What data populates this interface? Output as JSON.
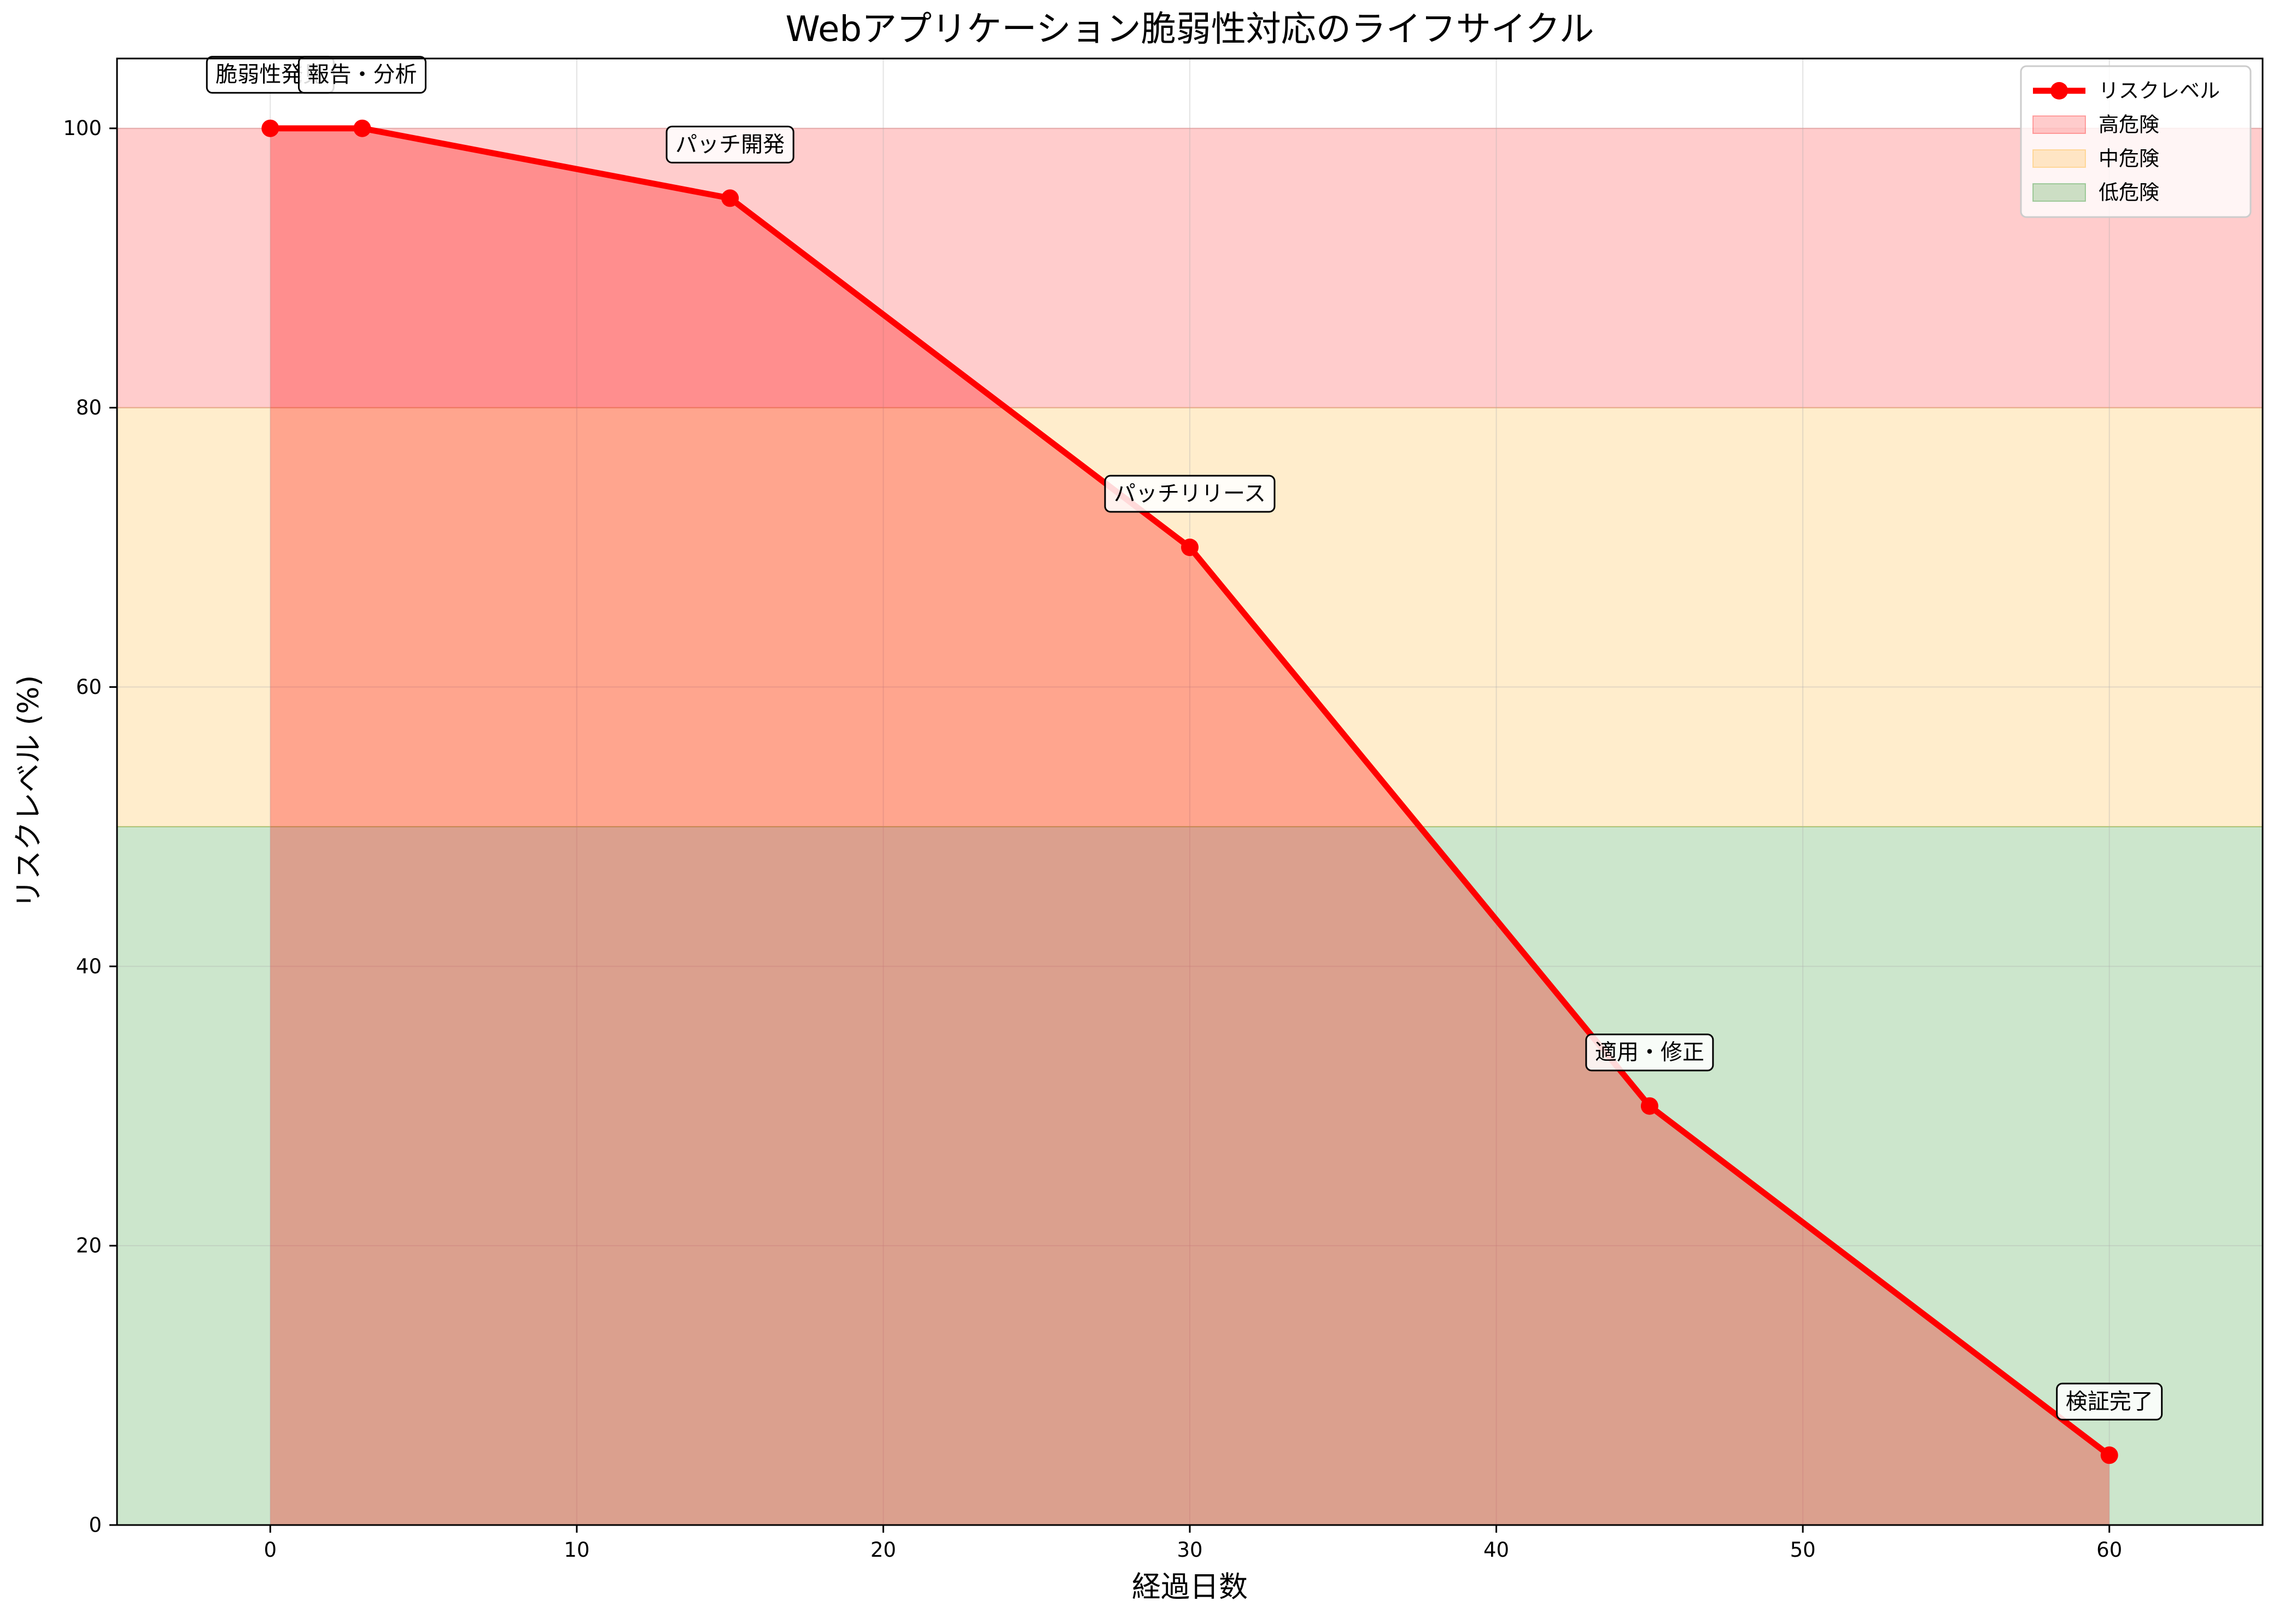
{
  "chart_data": {
    "type": "line",
    "title": "Webアプリケーション脆弱性対応のライフサイクル",
    "xlabel": "経過日数",
    "ylabel": "リスクレベル (%)",
    "xlim": [
      -5,
      65
    ],
    "ylim": [
      0,
      105
    ],
    "xticks": [
      0,
      10,
      20,
      30,
      40,
      50,
      60
    ],
    "yticks": [
      0,
      20,
      40,
      60,
      80,
      100
    ],
    "grid": true,
    "legend_position": "upper right",
    "series": [
      {
        "name": "リスクレベル",
        "color": "#ff0000",
        "fill_under": true,
        "x": [
          0,
          3,
          15,
          30,
          45,
          60
        ],
        "y": [
          100,
          100,
          95,
          70,
          30,
          5
        ]
      }
    ],
    "bands": [
      {
        "name": "高危険",
        "y0": 80,
        "y1": 100,
        "color": "#ff0000",
        "opacity": 0.2
      },
      {
        "name": "中危険",
        "y0": 50,
        "y1": 80,
        "color": "#ffa500",
        "opacity": 0.2
      },
      {
        "name": "低危険",
        "y0": 0,
        "y1": 50,
        "color": "#008000",
        "opacity": 0.2
      }
    ],
    "annotations": [
      {
        "x": 0,
        "y": 100,
        "text": "脆弱性発見"
      },
      {
        "x": 3,
        "y": 100,
        "text": "報告・分析"
      },
      {
        "x": 15,
        "y": 95,
        "text": "パッチ開発"
      },
      {
        "x": 30,
        "y": 70,
        "text": "パッチリリース"
      },
      {
        "x": 45,
        "y": 30,
        "text": "適用・修正"
      },
      {
        "x": 60,
        "y": 5,
        "text": "検証完了"
      }
    ]
  }
}
